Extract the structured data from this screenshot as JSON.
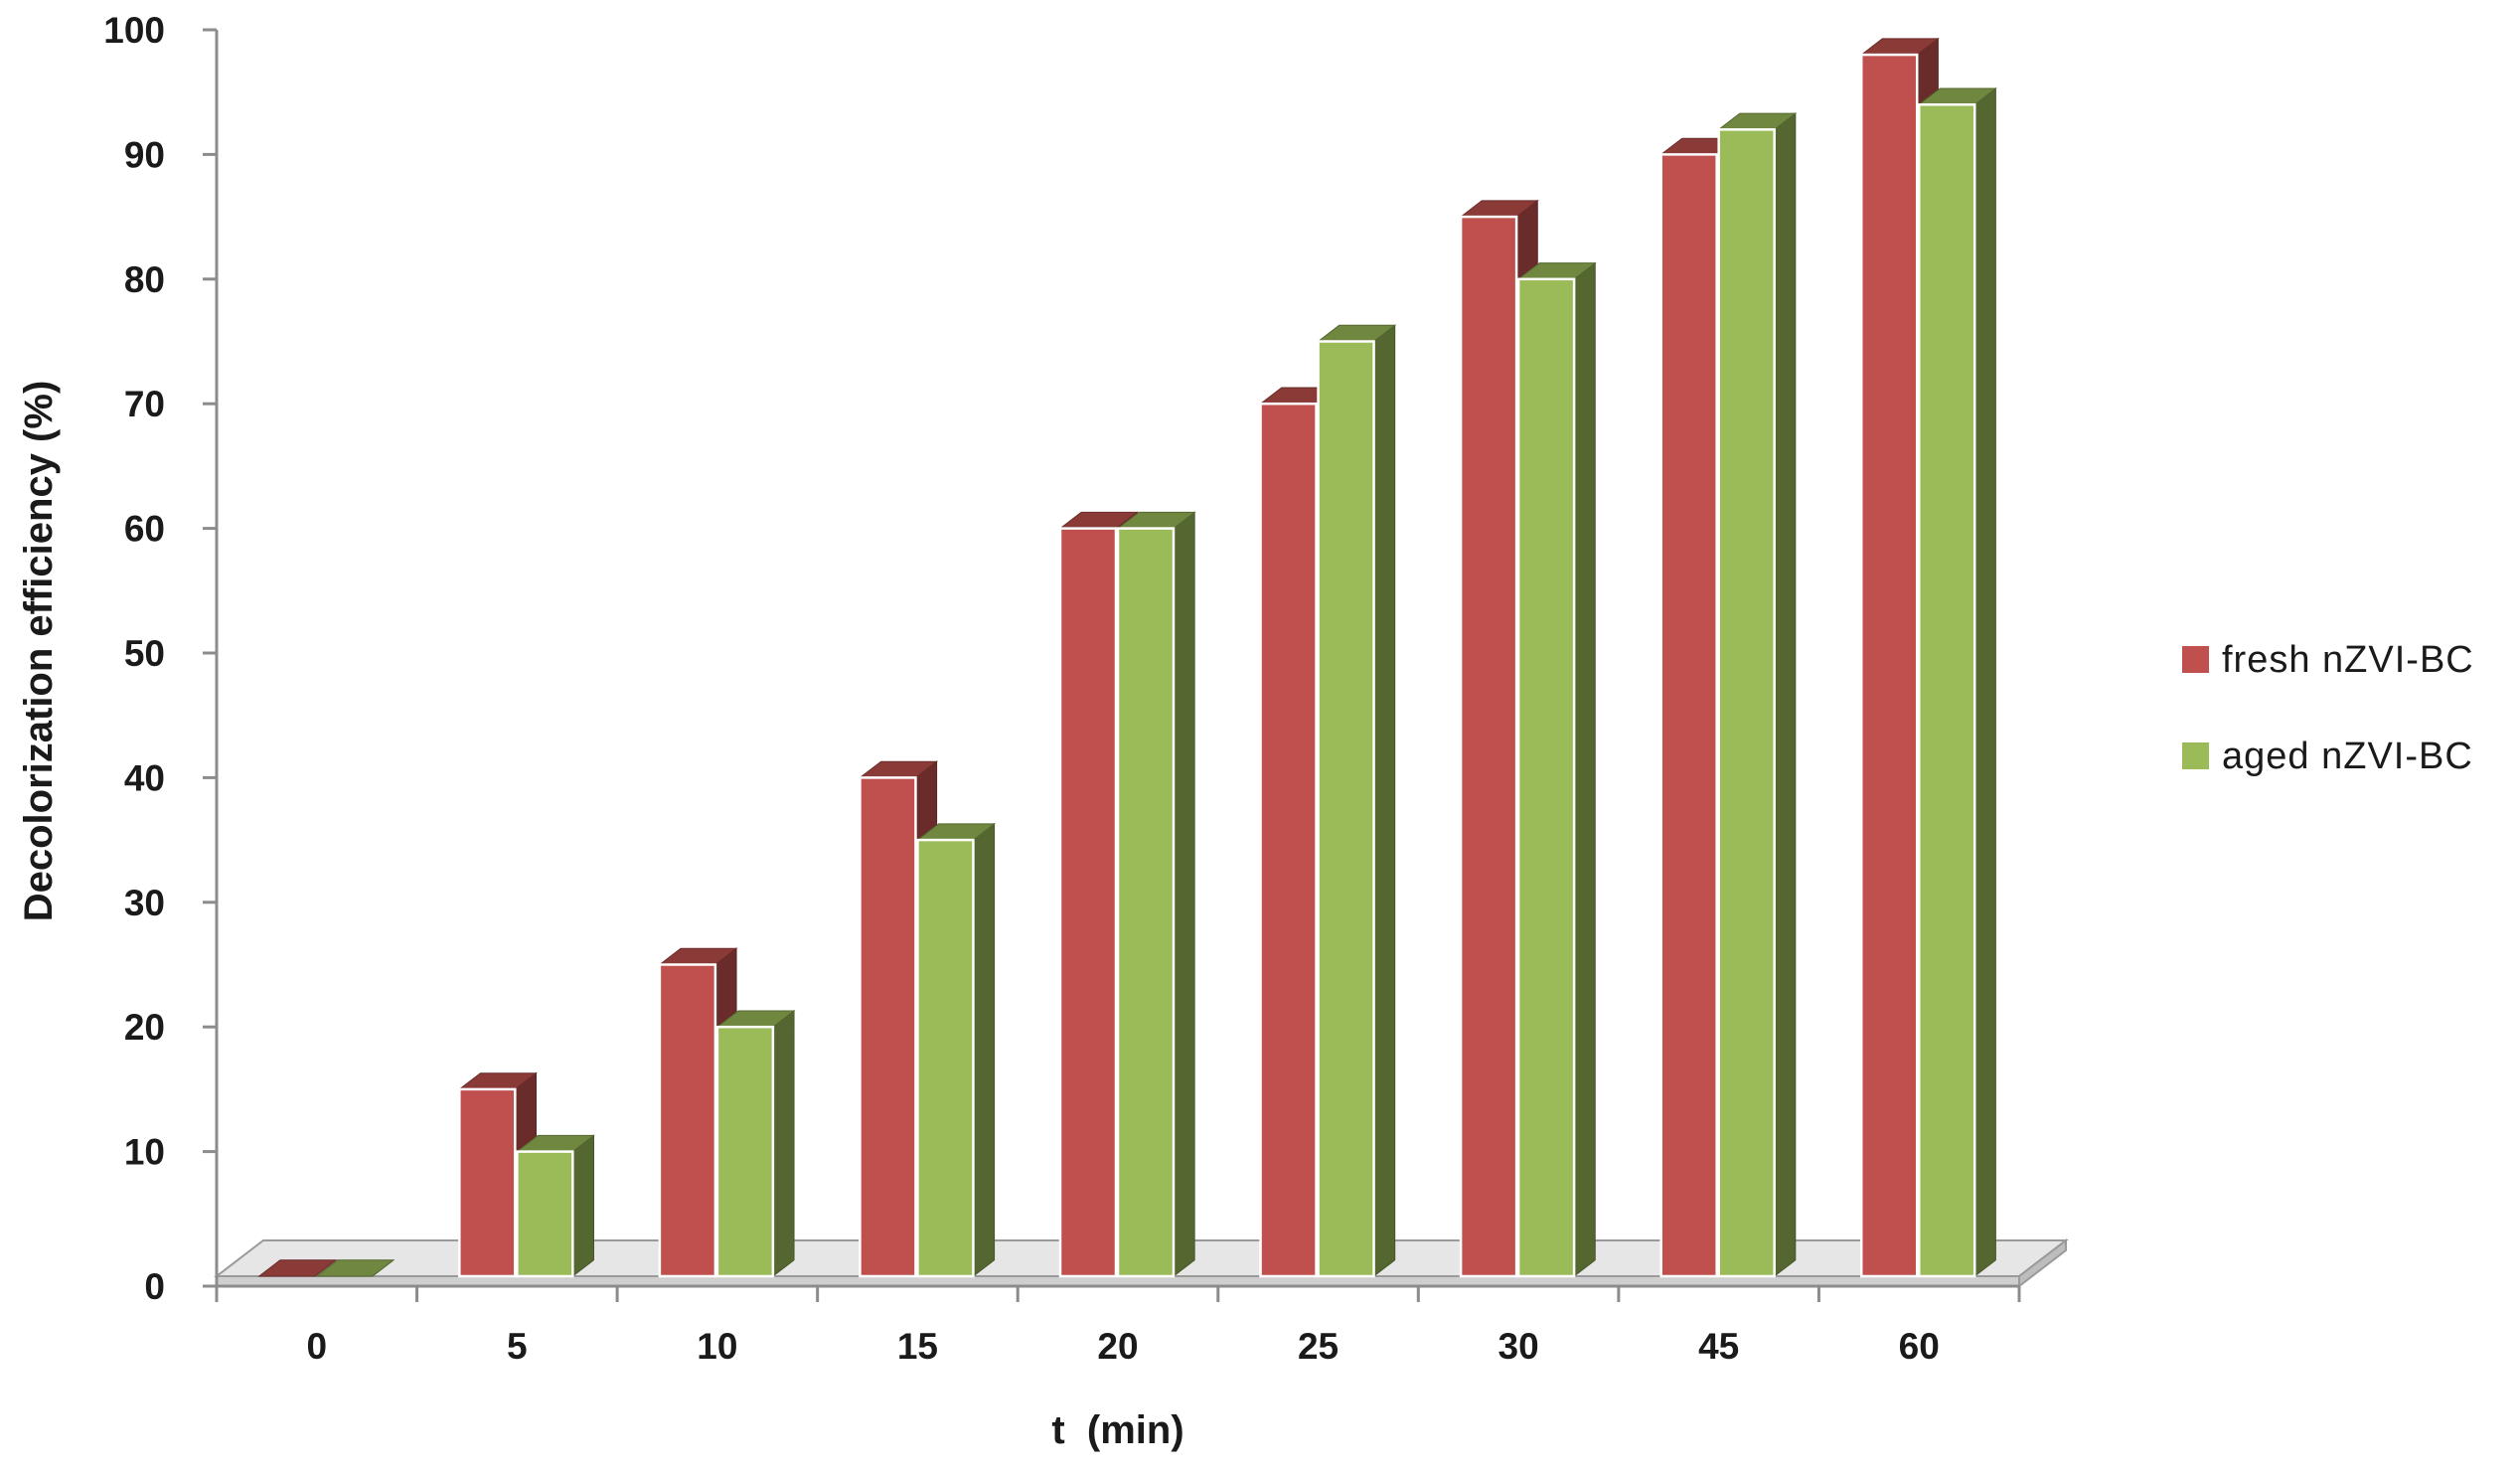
{
  "chart_data": {
    "type": "bar",
    "style": "3d-clustered-column",
    "categories": [
      "0",
      "5",
      "10",
      "15",
      "20",
      "25",
      "30",
      "45",
      "60"
    ],
    "series": [
      {
        "name": "fresh nZVI-BC",
        "color": "#c0504d",
        "values": [
          0,
          15,
          25,
          40,
          60,
          70,
          85,
          90,
          98
        ]
      },
      {
        "name": "aged nZVI-BC",
        "color": "#9bbb59",
        "values": [
          0,
          10,
          20,
          35,
          60,
          75,
          80,
          92,
          94
        ]
      }
    ],
    "xlabel": "t  (min)",
    "ylabel": "Decolorization efficiency  (%)",
    "ylim": [
      0,
      100
    ],
    "yticks": [
      0,
      10,
      20,
      30,
      40,
      50,
      60,
      70,
      80,
      90,
      100
    ],
    "grid": false,
    "legend_position": "right"
  }
}
